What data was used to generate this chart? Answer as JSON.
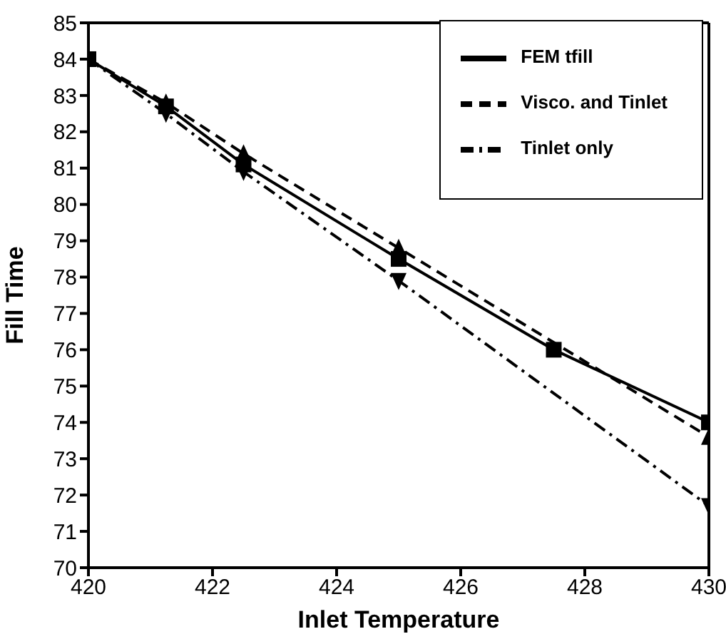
{
  "chart_data": {
    "type": "line",
    "xlabel": "Inlet Temperature",
    "ylabel": "Fill Time",
    "xlim": [
      420,
      430
    ],
    "xticks": [
      420,
      422,
      424,
      426,
      428,
      430
    ],
    "ylim": [
      70,
      85
    ],
    "yticks": [
      70,
      71,
      72,
      73,
      74,
      75,
      76,
      77,
      78,
      79,
      80,
      81,
      82,
      83,
      84,
      85
    ],
    "grid": false,
    "legend": "top right",
    "series": [
      {
        "name": "FEM tfill",
        "color": "#000000",
        "x": [
          420,
          421.25,
          422.5,
          425,
          427.5,
          430
        ],
        "values": [
          84,
          82.7,
          81.1,
          78.5,
          76,
          74
        ],
        "marker": "square",
        "line_style": "solid"
      },
      {
        "name": "Visco. and Tinlet",
        "color": "#000000",
        "x": [
          420,
          421.25,
          422.5,
          425,
          430
        ],
        "values": [
          84,
          82.8,
          81.4,
          78.8,
          73.6
        ],
        "marker": "triangle",
        "line_style": "dashed"
      },
      {
        "name": "Tinlet only",
        "color": "#000000",
        "x": [
          420,
          421.25,
          422.5,
          425,
          430
        ],
        "values": [
          84,
          82.5,
          80.9,
          77.9,
          71.7
        ],
        "marker": "triangle-down",
        "line_style": "dashdot"
      }
    ]
  }
}
